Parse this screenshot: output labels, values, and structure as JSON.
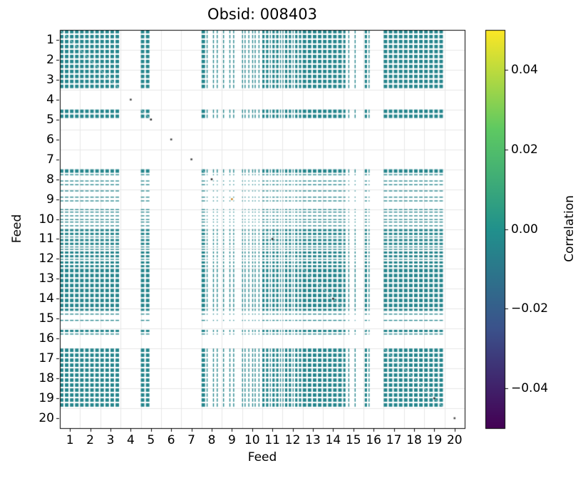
{
  "chart_data": {
    "type": "heatmap",
    "title": "Obsid: 008403",
    "xlabel": "Feed",
    "ylabel": "Feed",
    "x_ticks": [
      "1",
      "2",
      "3",
      "4",
      "5",
      "6",
      "7",
      "8",
      "9",
      "10",
      "11",
      "12",
      "13",
      "14",
      "15",
      "16",
      "17",
      "18",
      "19",
      "20"
    ],
    "y_ticks": [
      "1",
      "2",
      "3",
      "4",
      "5",
      "6",
      "7",
      "8",
      "9",
      "10",
      "11",
      "12",
      "13",
      "14",
      "15",
      "16",
      "17",
      "18",
      "19",
      "20"
    ],
    "colorbar_label": "Correlation",
    "colorbar_ticks": [
      {
        "label": "0.04",
        "value": 0.04
      },
      {
        "label": "0.02",
        "value": 0.02
      },
      {
        "label": "0.00",
        "value": 0.0
      },
      {
        "label": "−0.02",
        "value": -0.02
      },
      {
        "label": "−0.04",
        "value": -0.04
      }
    ],
    "vmin": -0.05,
    "vmax": 0.05,
    "colormap": "viridis",
    "colormap_stops": [
      [
        0,
        "#440154"
      ],
      [
        0.25,
        "#3b528b"
      ],
      [
        0.5,
        "#21918c"
      ],
      [
        0.75,
        "#5ec962"
      ],
      [
        1,
        "#fde725"
      ]
    ],
    "typical_correlation": 0.0,
    "cell_value_color": "#26868d",
    "grid_color": "#e7e7e7",
    "diagonal_line_color": "rgba(255,255,255,0.55)",
    "channels_per_feed": 16,
    "description": "Feed-by-feed correlation matrix (20 feeds, each split into frequency sub-channels). Plotted cells have correlation near 0.00 (teal in viridis, range −0.05 to 0.05). Feeds 4, 6, 7 and 20 have no data; feeds 5, 8, 9, 10, 11, 12, 15, 16 have partial channel coverage; feeds 1, 2, 3, 13, 14, 17, 18, 19 are fully covered.",
    "empty_feeds": [
      4,
      6,
      7,
      20
    ],
    "full_feeds": [
      1,
      2,
      3,
      13,
      14,
      17,
      18,
      19
    ],
    "partial_feeds": [
      5,
      8,
      9,
      10,
      11,
      12,
      15,
      16
    ],
    "feed_channel_masks": {
      "1": [
        1,
        1,
        1,
        0,
        1,
        1,
        1,
        0,
        1,
        1,
        1,
        0,
        1,
        1,
        1,
        0
      ],
      "2": [
        1,
        1,
        1,
        0,
        1,
        1,
        1,
        0,
        1,
        1,
        1,
        0,
        1,
        1,
        1,
        0
      ],
      "3": [
        1,
        1,
        1,
        0,
        1,
        1,
        1,
        0,
        1,
        1,
        1,
        0,
        1,
        1,
        1,
        0
      ],
      "4": [
        0,
        0,
        0,
        0,
        0,
        0,
        0,
        0,
        0,
        0,
        0,
        0,
        0,
        0,
        0,
        0
      ],
      "5": [
        1,
        1,
        1,
        0,
        1,
        1,
        1,
        0,
        0,
        0,
        0,
        0,
        0,
        0,
        0,
        0
      ],
      "6": [
        0,
        0,
        0,
        0,
        0,
        0,
        0,
        0,
        0,
        0,
        0,
        0,
        0,
        0,
        0,
        0
      ],
      "7": [
        0,
        0,
        0,
        0,
        0,
        0,
        0,
        0,
        0,
        0,
        0,
        0,
        0,
        0,
        0,
        0
      ],
      "8": [
        1,
        1,
        1,
        0,
        1,
        0,
        0,
        0,
        0,
        1,
        0,
        0,
        1,
        0,
        0,
        0
      ],
      "9": [
        0,
        1,
        0,
        0,
        0,
        0,
        1,
        0,
        0,
        1,
        0,
        0,
        0,
        0,
        0,
        0
      ],
      "10": [
        1,
        0,
        1,
        0,
        0,
        1,
        0,
        0,
        1,
        0,
        1,
        0,
        0,
        1,
        0,
        0
      ],
      "11": [
        1,
        1,
        0,
        1,
        1,
        0,
        1,
        0,
        1,
        1,
        0,
        1,
        1,
        0,
        1,
        0
      ],
      "12": [
        1,
        0,
        1,
        1,
        0,
        1,
        1,
        0,
        1,
        0,
        1,
        1,
        0,
        1,
        1,
        0
      ],
      "13": [
        1,
        1,
        1,
        0,
        1,
        1,
        1,
        0,
        1,
        1,
        1,
        0,
        1,
        1,
        1,
        0
      ],
      "14": [
        1,
        1,
        1,
        0,
        1,
        1,
        1,
        0,
        1,
        1,
        1,
        0,
        1,
        1,
        1,
        0
      ],
      "15": [
        1,
        1,
        0,
        0,
        1,
        0,
        0,
        0,
        0,
        1,
        0,
        0,
        0,
        0,
        0,
        0
      ],
      "16": [
        0,
        1,
        1,
        0,
        1,
        0,
        0,
        0,
        0,
        0,
        0,
        0,
        0,
        0,
        0,
        0
      ],
      "17": [
        1,
        1,
        1,
        0,
        1,
        1,
        1,
        0,
        1,
        1,
        1,
        0,
        1,
        1,
        1,
        0
      ],
      "18": [
        1,
        1,
        1,
        0,
        1,
        1,
        1,
        0,
        1,
        1,
        1,
        0,
        1,
        1,
        1,
        0
      ],
      "19": [
        1,
        1,
        1,
        0,
        1,
        1,
        1,
        0,
        1,
        1,
        1,
        0,
        1,
        1,
        1,
        0
      ],
      "20": [
        0,
        0,
        0,
        0,
        0,
        0,
        0,
        0,
        0,
        0,
        0,
        0,
        0,
        0,
        0,
        0
      ]
    },
    "diagonal_dots": [
      {
        "feed": 4,
        "color": "#4a4a4a"
      },
      {
        "feed": 6,
        "color": "#4a4a4a"
      },
      {
        "feed": 7,
        "color": "#4a4a4a"
      },
      {
        "feed": 20,
        "color": "#4a4a4a"
      },
      {
        "feed": 5,
        "color": "#2d2d2d"
      },
      {
        "feed": 8,
        "color": "#2d2d2d"
      },
      {
        "feed": 9,
        "color": "#c98a2f"
      },
      {
        "feed": 11,
        "color": "#2d2d2d"
      },
      {
        "feed": 14,
        "color": "#2d2d2d"
      },
      {
        "feed": 19,
        "color": "#2d2d2d"
      }
    ]
  }
}
